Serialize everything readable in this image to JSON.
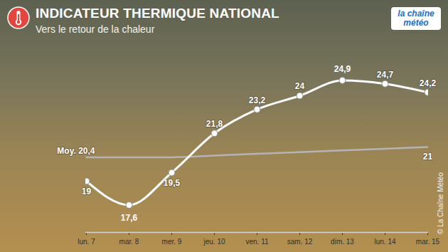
{
  "chart_data": {
    "type": "line",
    "title": "INDICATEUR THERMIQUE NATIONAL",
    "subtitle": "Vers le retour de la chaleur",
    "logo": "la chaîne météo",
    "credit": "© La Chaîne Météo",
    "categories": [
      "lun. 7",
      "mar. 8",
      "mer. 9",
      "jeu. 10",
      "ven. 11",
      "sam. 12",
      "dim. 13",
      "lun. 14",
      "mar. 15"
    ],
    "series": [
      {
        "color": "#ffffff",
        "marker": "circle",
        "values": [
          19,
          17.6,
          19.5,
          21.8,
          23.2,
          24,
          24.9,
          24.7,
          24.2
        ],
        "value_labels": [
          "19",
          "17,6",
          "19,5",
          "21,8",
          "23,2",
          "24",
          "24,9",
          "24,7",
          "24,2"
        ]
      },
      {
        "color": "#b4b4b4",
        "values": [
          20.4,
          20.4,
          20.4,
          20.5,
          20.6,
          20.7,
          20.8,
          20.9,
          21
        ],
        "value_labels": [
          "Moy. 20,4",
          null,
          null,
          null,
          null,
          null,
          null,
          null,
          "21"
        ]
      }
    ],
    "ylim": [
      16,
      26
    ],
    "tick_labels": "x",
    "data_labels": true,
    "grid": false
  }
}
